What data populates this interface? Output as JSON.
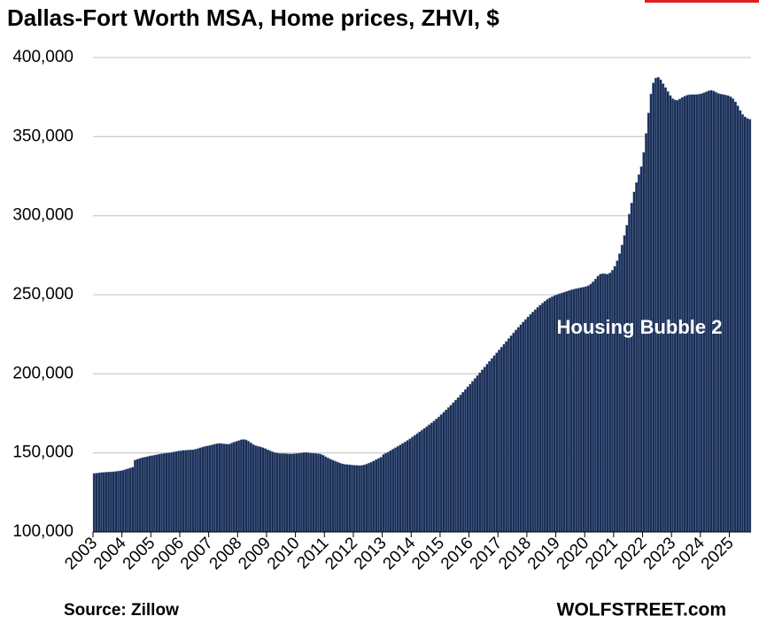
{
  "chart_data": {
    "type": "bar",
    "title": "Dallas-Fort Worth MSA, Home prices, ZHVI, $",
    "annotation": "Housing Bubble 2",
    "source": "Source: Zillow",
    "credit": "WOLFSTREET.com",
    "color": "#1c2e52",
    "edge_color": "#6f8fc4",
    "grid": true,
    "ylim": [
      100000,
      400000
    ],
    "yticks": [
      {
        "value": 100000,
        "label": "100,000"
      },
      {
        "value": 150000,
        "label": "150,000"
      },
      {
        "value": 200000,
        "label": "200,000"
      },
      {
        "value": 250000,
        "label": "250,000"
      },
      {
        "value": 300000,
        "label": "300,000"
      },
      {
        "value": 350000,
        "label": "350,000"
      },
      {
        "value": 400000,
        "label": "400,000"
      }
    ],
    "categories": [
      "2003",
      null,
      null,
      null,
      null,
      null,
      null,
      null,
      null,
      null,
      null,
      null,
      "2004",
      null,
      null,
      null,
      null,
      null,
      null,
      null,
      null,
      null,
      null,
      null,
      "2005",
      null,
      null,
      null,
      null,
      null,
      null,
      null,
      null,
      null,
      null,
      null,
      "2006",
      null,
      null,
      null,
      null,
      null,
      null,
      null,
      null,
      null,
      null,
      null,
      "2007",
      null,
      null,
      null,
      null,
      null,
      null,
      null,
      null,
      null,
      null,
      null,
      "2008",
      null,
      null,
      null,
      null,
      null,
      null,
      null,
      null,
      null,
      null,
      null,
      "2009",
      null,
      null,
      null,
      null,
      null,
      null,
      null,
      null,
      null,
      null,
      null,
      "2010",
      null,
      null,
      null,
      null,
      null,
      null,
      null,
      null,
      null,
      null,
      null,
      "2011",
      null,
      null,
      null,
      null,
      null,
      null,
      null,
      null,
      null,
      null,
      null,
      "2012",
      null,
      null,
      null,
      null,
      null,
      null,
      null,
      null,
      null,
      null,
      null,
      "2013",
      null,
      null,
      null,
      null,
      null,
      null,
      null,
      null,
      null,
      null,
      null,
      "2014",
      null,
      null,
      null,
      null,
      null,
      null,
      null,
      null,
      null,
      null,
      null,
      "2015",
      null,
      null,
      null,
      null,
      null,
      null,
      null,
      null,
      null,
      null,
      null,
      "2016",
      null,
      null,
      null,
      null,
      null,
      null,
      null,
      null,
      null,
      null,
      null,
      "2017",
      null,
      null,
      null,
      null,
      null,
      null,
      null,
      null,
      null,
      null,
      null,
      "2018",
      null,
      null,
      null,
      null,
      null,
      null,
      null,
      null,
      null,
      null,
      null,
      "2019",
      null,
      null,
      null,
      null,
      null,
      null,
      null,
      null,
      null,
      null,
      null,
      "2020",
      null,
      null,
      null,
      null,
      null,
      null,
      null,
      null,
      null,
      null,
      null,
      "2021",
      null,
      null,
      null,
      null,
      null,
      null,
      null,
      null,
      null,
      null,
      null,
      "2022",
      null,
      null,
      null,
      null,
      null,
      null,
      null,
      null,
      null,
      null,
      null,
      "2023",
      null,
      null,
      null,
      null,
      null,
      null,
      null,
      null,
      null,
      null,
      null,
      "2024",
      null,
      null,
      null,
      null,
      null,
      null,
      null,
      null,
      null,
      null,
      null,
      "2025",
      null,
      null,
      null,
      null,
      null,
      null,
      null,
      null
    ],
    "values": [
      137000,
      137200,
      137400,
      137600,
      137700,
      137800,
      137900,
      138000,
      138100,
      138300,
      138500,
      138700,
      139000,
      139500,
      140000,
      140500,
      141000,
      145500,
      146000,
      146500,
      147000,
      147300,
      147600,
      148000,
      148300,
      148600,
      148900,
      149200,
      149500,
      149700,
      149900,
      150100,
      150300,
      150600,
      150900,
      151200,
      151400,
      151600,
      151700,
      151800,
      151900,
      152000,
      152300,
      152700,
      153200,
      153700,
      154100,
      154400,
      154700,
      155100,
      155500,
      155800,
      156000,
      155900,
      155700,
      155500,
      155600,
      156200,
      156800,
      157300,
      157800,
      158300,
      158500,
      158200,
      157400,
      156300,
      155300,
      154600,
      154200,
      153800,
      153300,
      152700,
      152000,
      151300,
      150700,
      150200,
      149900,
      149700,
      149600,
      149600,
      149500,
      149400,
      149400,
      149500,
      149600,
      149800,
      150000,
      150200,
      150300,
      150100,
      149900,
      149800,
      149700,
      149500,
      149200,
      148500,
      147600,
      146800,
      146100,
      145400,
      144800,
      144200,
      143600,
      143100,
      142800,
      142600,
      142500,
      142300,
      142200,
      142100,
      142000,
      142100,
      142400,
      142900,
      143500,
      144200,
      144900,
      145700,
      146500,
      147300,
      149000,
      149800,
      150600,
      151500,
      152400,
      153300,
      154200,
      155100,
      156000,
      156900,
      157900,
      158900,
      160000,
      161100,
      162200,
      163300,
      164400,
      165500,
      166600,
      167800,
      169000,
      170200,
      171500,
      172800,
      174200,
      175700,
      177200,
      178700,
      180200,
      181800,
      183400,
      185000,
      186700,
      188400,
      190100,
      191800,
      193500,
      195300,
      197100,
      198900,
      200700,
      202500,
      204300,
      206100,
      207900,
      209700,
      211500,
      213300,
      215100,
      216900,
      218700,
      220500,
      222300,
      224100,
      225900,
      227700,
      229400,
      231100,
      232800,
      234400,
      236000,
      237600,
      239100,
      240600,
      242000,
      243400,
      244700,
      245900,
      247000,
      248000,
      248800,
      249500,
      250100,
      250600,
      251100,
      251600,
      252100,
      252600,
      253100,
      253500,
      253900,
      254200,
      254500,
      254800,
      255200,
      255800,
      256800,
      258200,
      260000,
      261800,
      263000,
      263400,
      263200,
      263000,
      263800,
      265500,
      268000,
      271500,
      276000,
      281500,
      287500,
      294000,
      301000,
      308000,
      315000,
      321000,
      326000,
      331000,
      340000,
      352000,
      365000,
      377000,
      384000,
      387000,
      387500,
      386000,
      383500,
      381000,
      378500,
      376000,
      374000,
      373200,
      373000,
      373800,
      374800,
      375600,
      376200,
      376500,
      376600,
      376600,
      376700,
      376800,
      377200,
      377800,
      378400,
      379000,
      379300,
      378800,
      378000,
      377300,
      376900,
      376600,
      376300,
      375900,
      375200,
      374000,
      372000,
      369500,
      366500,
      364000,
      362500,
      361500,
      361000
    ]
  }
}
